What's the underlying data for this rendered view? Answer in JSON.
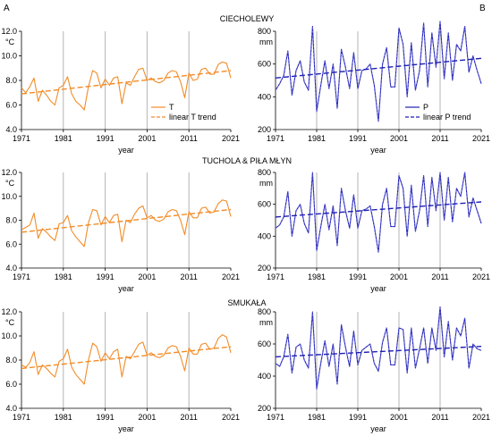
{
  "panel_labels": {
    "left": "A",
    "right": "B"
  },
  "colors": {
    "temperature": "#F28C28",
    "precipitation": "#1F1FB4",
    "grid": "#B4B4B4",
    "axis": "#000000"
  },
  "chart_data": [
    {
      "id": "t_ciecholewy",
      "type": "line",
      "station_title": "CIECHOLEWY",
      "unit": "°C",
      "xlabel": "year",
      "xlim": [
        1971,
        2021
      ],
      "ylim": [
        4.0,
        12.0
      ],
      "xticks": [
        1971,
        1981,
        1991,
        2001,
        2011,
        2021
      ],
      "yticks": [
        4.0,
        6.0,
        8.0,
        10.0,
        12.0
      ],
      "ytick_labels": [
        "4.0",
        "6.0",
        "8.0",
        "10.0",
        "12.0"
      ],
      "series": [
        {
          "name": "T",
          "style": "solid",
          "x": [
            1971,
            1972,
            1973,
            1974,
            1975,
            1976,
            1977,
            1978,
            1979,
            1980,
            1981,
            1982,
            1983,
            1984,
            1985,
            1986,
            1987,
            1988,
            1989,
            1990,
            1991,
            1992,
            1993,
            1994,
            1995,
            1996,
            1997,
            1998,
            1999,
            2000,
            2001,
            2002,
            2003,
            2004,
            2005,
            2006,
            2007,
            2008,
            2009,
            2010,
            2011,
            2012,
            2013,
            2014,
            2015,
            2016,
            2017,
            2018,
            2019,
            2020,
            2021
          ],
          "y": [
            7.4,
            7.0,
            7.5,
            8.2,
            6.3,
            7.2,
            6.8,
            6.3,
            6.0,
            7.4,
            7.6,
            8.3,
            6.9,
            6.3,
            6.0,
            5.6,
            7.5,
            8.8,
            8.6,
            7.4,
            8.1,
            7.6,
            8.2,
            8.3,
            6.1,
            7.8,
            7.6,
            8.3,
            8.9,
            9.0,
            8.0,
            8.2,
            7.9,
            7.8,
            8.0,
            8.6,
            8.8,
            8.7,
            7.9,
            6.6,
            8.6,
            8.0,
            8.1,
            8.9,
            9.0,
            8.5,
            8.5,
            9.3,
            9.5,
            9.4,
            8.2
          ]
        },
        {
          "name": "linear T trend",
          "style": "dashed",
          "x": [
            1971,
            2021
          ],
          "y": [
            6.9,
            8.8
          ]
        }
      ]
    },
    {
      "id": "p_ciecholewy",
      "type": "line",
      "station_title": "",
      "unit": "mm",
      "xlabel": "year",
      "xlim": [
        1971,
        2021
      ],
      "ylim": [
        200,
        800
      ],
      "xticks": [
        1971,
        1981,
        1991,
        2001,
        2011,
        2021
      ],
      "yticks": [
        200,
        400,
        600,
        800
      ],
      "ytick_labels": [
        "200",
        "400",
        "600",
        "800"
      ],
      "series": [
        {
          "name": "P",
          "style": "solid",
          "x": [
            1971,
            1972,
            1973,
            1974,
            1975,
            1976,
            1977,
            1978,
            1979,
            1980,
            1981,
            1982,
            1983,
            1984,
            1985,
            1986,
            1987,
            1988,
            1989,
            1990,
            1991,
            1992,
            1993,
            1994,
            1995,
            1996,
            1997,
            1998,
            1999,
            2000,
            2001,
            2002,
            2003,
            2004,
            2005,
            2006,
            2007,
            2008,
            2009,
            2010,
            2011,
            2012,
            2013,
            2014,
            2015,
            2016,
            2017,
            2018,
            2019,
            2020,
            2021
          ],
          "y": [
            440,
            480,
            530,
            680,
            410,
            560,
            620,
            490,
            440,
            830,
            310,
            470,
            620,
            450,
            600,
            330,
            690,
            580,
            450,
            670,
            450,
            560,
            570,
            600,
            470,
            250,
            600,
            700,
            460,
            460,
            820,
            720,
            400,
            730,
            440,
            560,
            850,
            460,
            790,
            580,
            860,
            510,
            790,
            500,
            720,
            680,
            830,
            550,
            650,
            560,
            480
          ]
        },
        {
          "name": "linear P trend",
          "style": "dashed",
          "x": [
            1971,
            2021
          ],
          "y": [
            515,
            635
          ]
        }
      ]
    },
    {
      "id": "t_tuchola",
      "type": "line",
      "station_title": "TUCHOLA & PIŁA MŁYN",
      "unit": "°C",
      "xlabel": "year",
      "xlim": [
        1971,
        2021
      ],
      "ylim": [
        4.0,
        12.0
      ],
      "xticks": [
        1971,
        1981,
        1991,
        2001,
        2011,
        2021
      ],
      "yticks": [
        4.0,
        6.0,
        8.0,
        10.0,
        12.0
      ],
      "ytick_labels": [
        "4.0",
        "6.0",
        "8.0",
        "10.0",
        "12.0"
      ],
      "series": [
        {
          "name": "T",
          "style": "solid",
          "x": [
            1971,
            1972,
            1973,
            1974,
            1975,
            1976,
            1977,
            1978,
            1979,
            1980,
            1981,
            1982,
            1983,
            1984,
            1985,
            1986,
            1987,
            1988,
            1989,
            1990,
            1991,
            1992,
            1993,
            1994,
            1995,
            1996,
            1997,
            1998,
            1999,
            2000,
            2001,
            2002,
            2003,
            2004,
            2005,
            2006,
            2007,
            2008,
            2009,
            2010,
            2011,
            2012,
            2013,
            2014,
            2015,
            2016,
            2017,
            2018,
            2019,
            2020,
            2021
          ],
          "y": [
            7.2,
            7.4,
            7.6,
            8.6,
            6.5,
            7.3,
            7.0,
            6.6,
            6.3,
            7.7,
            7.8,
            8.4,
            7.1,
            6.6,
            6.2,
            5.8,
            7.8,
            8.9,
            8.8,
            7.6,
            8.3,
            7.8,
            8.4,
            8.5,
            6.2,
            8.0,
            7.8,
            8.5,
            9.0,
            9.2,
            8.2,
            8.4,
            8.0,
            7.9,
            8.1,
            8.7,
            8.9,
            8.8,
            8.0,
            6.8,
            8.7,
            8.2,
            8.2,
            9.0,
            9.1,
            8.6,
            8.7,
            9.4,
            9.7,
            9.6,
            8.3
          ]
        },
        {
          "name": "linear T trend",
          "style": "dashed",
          "x": [
            1971,
            2021
          ],
          "y": [
            7.0,
            8.9
          ]
        }
      ]
    },
    {
      "id": "p_tuchola",
      "type": "line",
      "station_title": "",
      "unit": "mm",
      "xlabel": "year",
      "xlim": [
        1971,
        2021
      ],
      "ylim": [
        200,
        800
      ],
      "xticks": [
        1971,
        1981,
        1991,
        2001,
        2011,
        2021
      ],
      "yticks": [
        200,
        400,
        600,
        800
      ],
      "ytick_labels": [
        "200",
        "400",
        "600",
        "800"
      ],
      "series": [
        {
          "name": "P",
          "style": "solid",
          "x": [
            1971,
            1972,
            1973,
            1974,
            1975,
            1976,
            1977,
            1978,
            1979,
            1980,
            1981,
            1982,
            1983,
            1984,
            1985,
            1986,
            1987,
            1988,
            1989,
            1990,
            1991,
            1992,
            1993,
            1994,
            1995,
            1996,
            1997,
            1998,
            1999,
            2000,
            2001,
            2002,
            2003,
            2004,
            2005,
            2006,
            2007,
            2008,
            2009,
            2010,
            2011,
            2012,
            2013,
            2014,
            2015,
            2016,
            2017,
            2018,
            2019,
            2020,
            2021
          ],
          "y": [
            450,
            470,
            520,
            680,
            400,
            560,
            600,
            480,
            420,
            800,
            310,
            460,
            600,
            440,
            590,
            340,
            700,
            560,
            450,
            660,
            450,
            560,
            570,
            590,
            460,
            300,
            600,
            700,
            460,
            460,
            780,
            700,
            400,
            720,
            430,
            560,
            780,
            460,
            770,
            560,
            800,
            500,
            770,
            490,
            700,
            650,
            800,
            520,
            640,
            560,
            480
          ]
        },
        {
          "name": "linear P trend",
          "style": "dashed",
          "x": [
            1971,
            2021
          ],
          "y": [
            520,
            615
          ]
        }
      ]
    },
    {
      "id": "t_smukala",
      "type": "line",
      "station_title": "SMUKAŁA",
      "unit": "°C",
      "xlabel": "year",
      "xlim": [
        1971,
        2021
      ],
      "ylim": [
        4.0,
        12.0
      ],
      "xticks": [
        1971,
        1981,
        1991,
        2001,
        2011,
        2021
      ],
      "yticks": [
        4.0,
        6.0,
        8.0,
        10.0,
        12.0
      ],
      "ytick_labels": [
        "4.0",
        "6.0",
        "8.0",
        "10.0",
        "12.0"
      ],
      "series": [
        {
          "name": "T",
          "style": "solid",
          "x": [
            1971,
            1972,
            1973,
            1974,
            1975,
            1976,
            1977,
            1978,
            1979,
            1980,
            1981,
            1982,
            1983,
            1984,
            1985,
            1986,
            1987,
            1988,
            1989,
            1990,
            1991,
            1992,
            1993,
            1994,
            1995,
            1996,
            1997,
            1998,
            1999,
            2000,
            2001,
            2002,
            2003,
            2004,
            2005,
            2006,
            2007,
            2008,
            2009,
            2010,
            2011,
            2012,
            2013,
            2014,
            2015,
            2016,
            2017,
            2018,
            2019,
            2020,
            2021
          ],
          "y": [
            7.6,
            7.4,
            7.8,
            8.7,
            6.8,
            7.6,
            7.3,
            6.9,
            6.6,
            7.9,
            8.1,
            8.9,
            7.4,
            6.8,
            6.4,
            6.0,
            8.0,
            9.4,
            9.1,
            7.9,
            8.6,
            8.1,
            8.7,
            8.9,
            6.6,
            8.3,
            8.1,
            8.7,
            9.3,
            9.5,
            8.4,
            8.6,
            8.3,
            8.2,
            8.4,
            9.0,
            9.2,
            9.1,
            8.3,
            7.1,
            9.0,
            8.5,
            8.5,
            9.3,
            9.4,
            8.9,
            9.0,
            9.8,
            10.1,
            9.9,
            8.6
          ]
        },
        {
          "name": "linear T trend",
          "style": "dashed",
          "x": [
            1971,
            2021
          ],
          "y": [
            7.3,
            9.1
          ]
        }
      ]
    },
    {
      "id": "p_smukala",
      "type": "line",
      "station_title": "",
      "unit": "mm",
      "xlabel": "year",
      "xlim": [
        1971,
        2021
      ],
      "ylim": [
        200,
        800
      ],
      "xticks": [
        1971,
        1981,
        1991,
        2001,
        2011,
        2021
      ],
      "yticks": [
        200,
        400,
        600,
        800
      ],
      "ytick_labels": [
        "200",
        "400",
        "600",
        "800"
      ],
      "series": [
        {
          "name": "P",
          "style": "solid",
          "x": [
            1971,
            1972,
            1973,
            1974,
            1975,
            1976,
            1977,
            1978,
            1979,
            1980,
            1981,
            1982,
            1983,
            1984,
            1985,
            1986,
            1987,
            1988,
            1989,
            1990,
            1991,
            1992,
            1993,
            1994,
            1995,
            1996,
            1997,
            1998,
            1999,
            2000,
            2001,
            2002,
            2003,
            2004,
            2005,
            2006,
            2007,
            2008,
            2009,
            2010,
            2011,
            2012,
            2013,
            2014,
            2015,
            2016,
            2017,
            2018,
            2019,
            2020,
            2021
          ],
          "y": [
            480,
            460,
            520,
            660,
            420,
            580,
            600,
            500,
            450,
            800,
            320,
            480,
            620,
            460,
            600,
            350,
            720,
            580,
            460,
            680,
            470,
            560,
            580,
            600,
            480,
            430,
            610,
            700,
            470,
            470,
            700,
            690,
            420,
            700,
            450,
            570,
            700,
            480,
            700,
            560,
            830,
            520,
            740,
            500,
            700,
            650,
            760,
            450,
            600,
            570,
            560
          ]
        },
        {
          "name": "linear P trend",
          "style": "dashed",
          "x": [
            1971,
            2021
          ],
          "y": [
            520,
            585
          ]
        }
      ]
    }
  ]
}
